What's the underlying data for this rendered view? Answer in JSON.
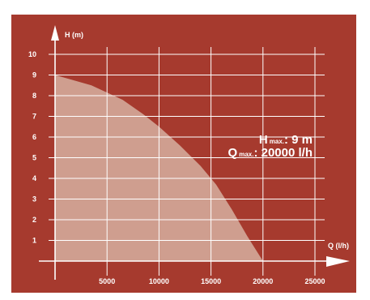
{
  "chart_data": {
    "type": "area",
    "xlabel": "Q (l/h)",
    "ylabel": "H (m)",
    "xlim": [
      0,
      25000
    ],
    "ylim": [
      0,
      10
    ],
    "x_ticks": [
      "5000",
      "10000",
      "15000",
      "20000",
      "25000"
    ],
    "y_ticks": [
      "1",
      "2",
      "3",
      "4",
      "5",
      "6",
      "7",
      "8",
      "9",
      "10"
    ],
    "grid": true,
    "series": [
      {
        "x": [
          0,
          3500,
          6500,
          8500,
          10000,
          12000,
          14000,
          15500,
          17000,
          18500,
          20000
        ],
        "y": [
          9,
          8.5,
          7.8,
          7.1,
          6.5,
          5.6,
          4.6,
          3.7,
          2.5,
          1.2,
          0
        ]
      }
    ],
    "annotations": {
      "h_max_letter": "H",
      "h_max_sub": "max.",
      "h_max_value": ": 9 m",
      "q_max_letter": "Q",
      "q_max_sub": "max.",
      "q_max_value": ": 20000 l/h"
    },
    "colors": {
      "background": "#a63a2e",
      "fill": "#cf9e8f",
      "grid": "#ffffff"
    }
  }
}
